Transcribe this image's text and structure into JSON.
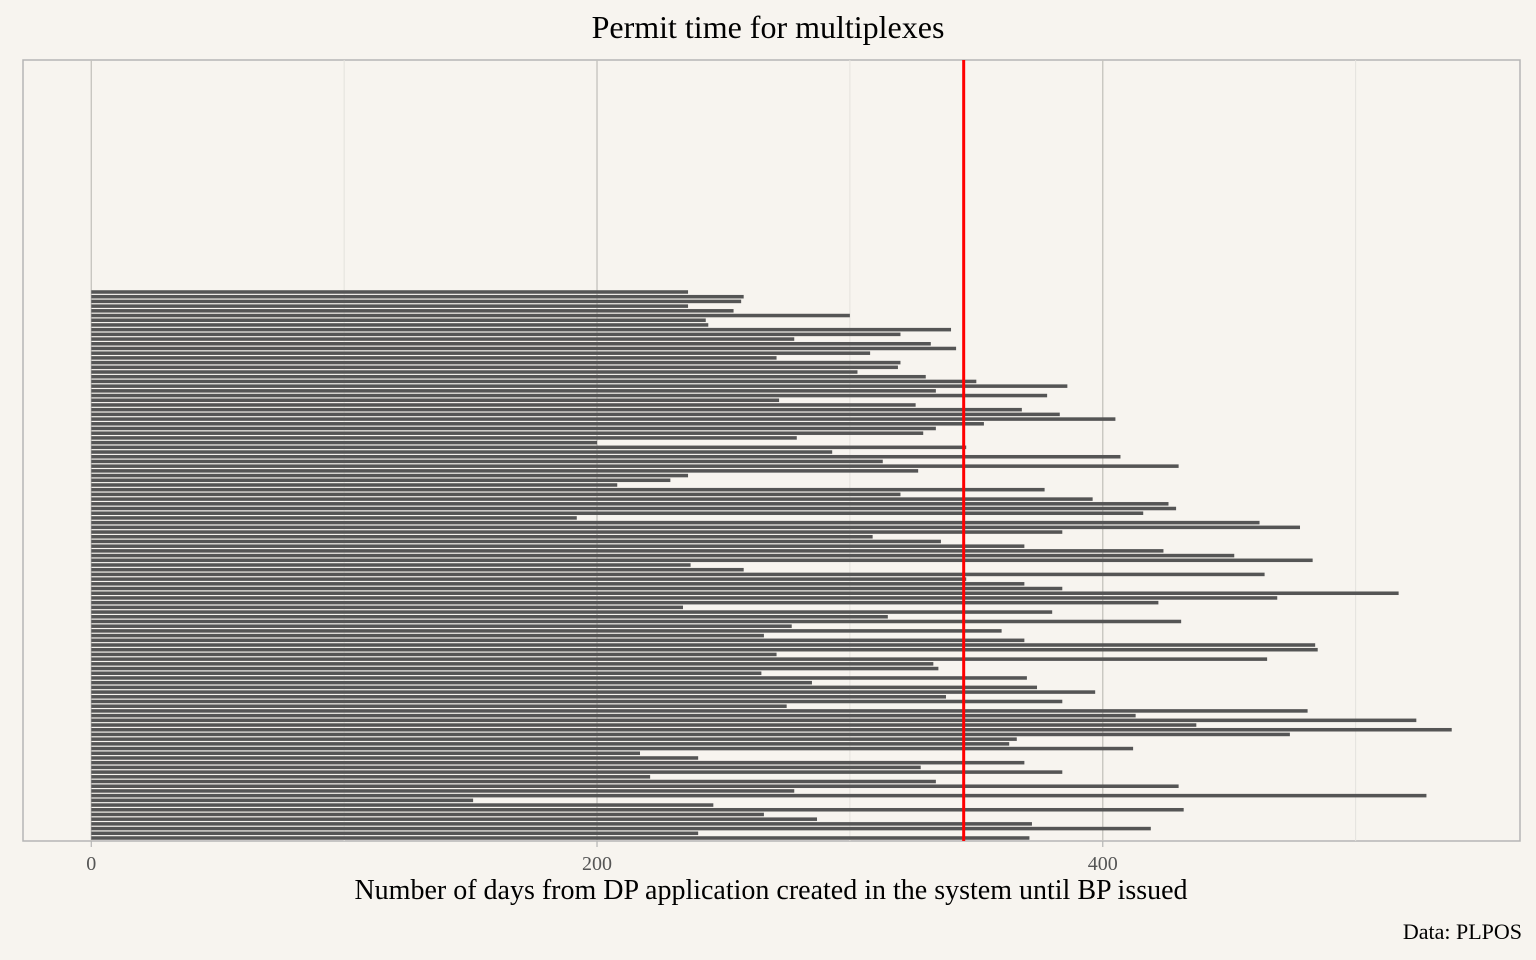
{
  "chart_data": {
    "type": "bar",
    "orientation": "horizontal",
    "title": "Permit time for multiplexes",
    "xlabel": "Number of days from DP application created in the system until BP issued",
    "ylabel": "",
    "caption": "Data: PLPOS",
    "xlim": [
      -27,
      565
    ],
    "x_ticks": [
      0,
      200,
      400
    ],
    "x_tick_labels": [
      "0",
      "200",
      "400"
    ],
    "grid": true,
    "legend": "none",
    "reference_line": {
      "value": 345,
      "color": "#ff0000"
    },
    "bar_color": "#555555",
    "values": [
      236,
      258,
      257,
      236,
      254,
      300,
      243,
      244,
      340,
      320,
      278,
      332,
      342,
      308,
      271,
      320,
      319,
      303,
      330,
      350,
      386,
      334,
      378,
      272,
      326,
      368,
      383,
      405,
      353,
      334,
      329,
      279,
      200,
      346,
      293,
      407,
      313,
      430,
      327,
      236,
      229,
      208,
      377,
      320,
      396,
      426,
      429,
      416,
      192,
      462,
      478,
      384,
      309,
      336,
      369,
      424,
      452,
      483,
      237,
      258,
      464,
      346,
      369,
      384,
      517,
      469,
      422,
      234,
      380,
      315,
      431,
      277,
      360,
      266,
      369,
      484,
      485,
      271,
      465,
      333,
      335,
      265,
      370,
      285,
      374,
      397,
      338,
      384,
      275,
      481,
      413,
      524,
      437,
      538,
      474,
      366,
      363,
      412,
      217,
      240,
      369,
      328,
      384,
      221,
      334,
      430,
      278,
      528,
      151,
      246,
      432,
      266,
      287,
      372,
      419,
      240,
      371
    ]
  }
}
